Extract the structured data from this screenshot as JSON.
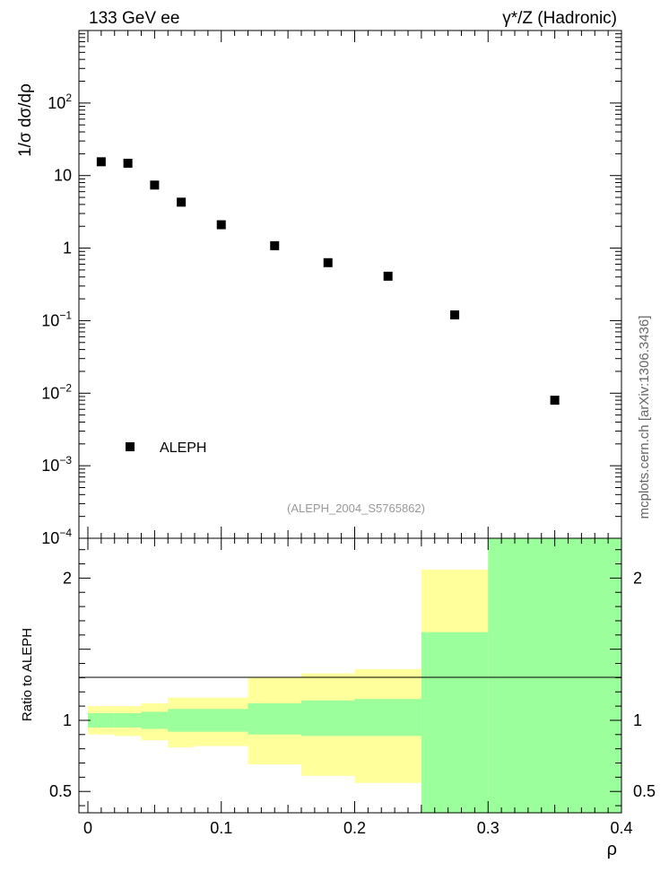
{
  "header": {
    "left": "133 GeV ee",
    "right": "γ*/Z (Hadronic)"
  },
  "watermark": "mcplots.cern.ch [arXiv:1306.3436]",
  "analysis_tag": "(ALEPH_2004_S5765862)",
  "colors": {
    "data_marker": "#000000",
    "band_inner": "#9bff9b",
    "band_outer": "#ffff9b",
    "reference_line": "#000000",
    "analysis_tag": "#999999",
    "watermark": "#666666"
  },
  "chart_data": [
    {
      "type": "scatter",
      "panel": "main",
      "ylabel": "1/σ dσ/dρ",
      "yscale": "log",
      "xlim": [
        0,
        0.4
      ],
      "ylim": [
        0.0001,
        1000
      ],
      "y_ticks": [
        {
          "value": 0.0001,
          "base": "10",
          "exp": "−4"
        },
        {
          "value": 0.001,
          "base": "10",
          "exp": "−3"
        },
        {
          "value": 0.01,
          "base": "10",
          "exp": "−2"
        },
        {
          "value": 0.1,
          "base": "10",
          "exp": "−1"
        },
        {
          "value": 1,
          "base": "1",
          "exp": ""
        },
        {
          "value": 10,
          "base": "10",
          "exp": ""
        },
        {
          "value": 100,
          "base": "10",
          "exp": "2"
        }
      ],
      "legend": {
        "position": "bottom-left",
        "entries": [
          "ALEPH"
        ]
      },
      "series": [
        {
          "name": "ALEPH",
          "x": [
            0.01,
            0.03,
            0.05,
            0.07,
            0.1,
            0.14,
            0.18,
            0.225,
            0.275,
            0.35
          ],
          "y": [
            15.5,
            14.8,
            7.4,
            4.3,
            2.1,
            1.08,
            0.63,
            0.41,
            0.12,
            0.008
          ]
        }
      ]
    },
    {
      "type": "area",
      "panel": "ratio",
      "ylabel": "Ratio to ALEPH",
      "xlabel": "ρ",
      "xlim": [
        0,
        0.4
      ],
      "ylim": [
        0.35,
        2.28
      ],
      "x_ticks": [
        "0",
        "0.1",
        "0.2",
        "0.3",
        "0.4"
      ],
      "y_ticks": [
        "0.5",
        "1",
        "2"
      ],
      "reference_line": 1,
      "bin_edges": [
        0,
        0.02,
        0.04,
        0.06,
        0.08,
        0.12,
        0.16,
        0.2,
        0.25,
        0.3,
        0.4
      ],
      "series": [
        {
          "name": "inner",
          "low": [
            0.95,
            0.95,
            0.94,
            0.92,
            0.92,
            0.9,
            0.89,
            0.89,
            0.35,
            0.35
          ],
          "high": [
            1.05,
            1.05,
            1.06,
            1.08,
            1.08,
            1.12,
            1.14,
            1.15,
            1.62,
            2.28
          ]
        },
        {
          "name": "outer",
          "low": [
            0.9,
            0.89,
            0.86,
            0.81,
            0.82,
            0.69,
            0.61,
            0.56,
            0.42,
            0.35
          ],
          "high": [
            1.1,
            1.1,
            1.12,
            1.16,
            1.16,
            1.3,
            1.33,
            1.36,
            2.06,
            2.28
          ]
        }
      ]
    }
  ]
}
